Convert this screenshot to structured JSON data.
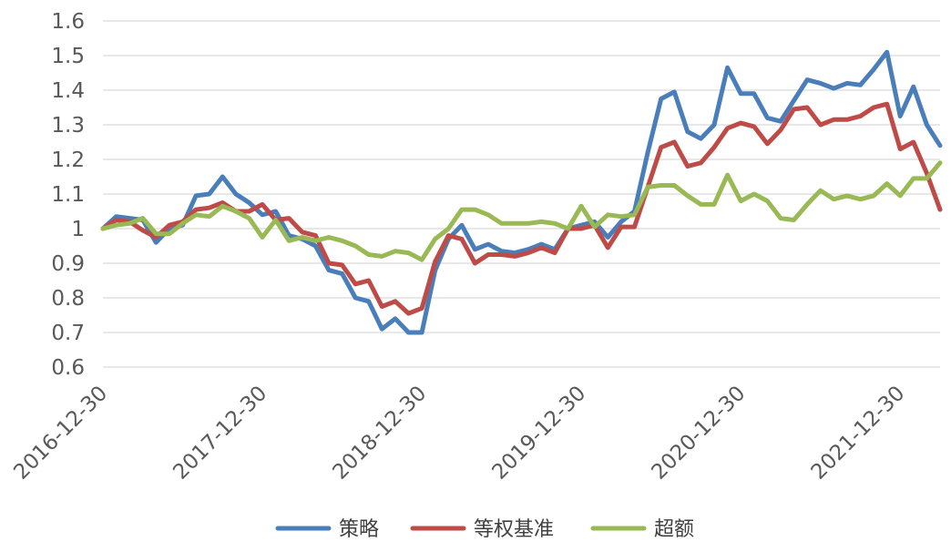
{
  "chart_data": {
    "type": "line",
    "title": "",
    "xlabel": "",
    "ylabel": "",
    "ylim": [
      0.6,
      1.6
    ],
    "y_ticks": [
      "0.6",
      "0.7",
      "0.8",
      "0.9",
      "1",
      "1.1",
      "1.2",
      "1.3",
      "1.4",
      "1.5",
      "1.6"
    ],
    "x_ticks": [
      "2016-12-30",
      "2017-12-30",
      "2018-12-30",
      "2019-12-30",
      "2020-12-30",
      "2021-12-30"
    ],
    "x_tick_index": [
      0,
      12,
      24,
      36,
      48,
      60
    ],
    "grid": "horizontal",
    "legend_position": "bottom",
    "series": [
      {
        "name": "策略",
        "color": "#4a7ebb",
        "values": [
          1.0,
          1.035,
          1.03,
          1.025,
          0.96,
          1.0,
          1.01,
          1.095,
          1.1,
          1.15,
          1.1,
          1.075,
          1.04,
          1.05,
          0.98,
          0.97,
          0.95,
          0.88,
          0.87,
          0.8,
          0.79,
          0.71,
          0.74,
          0.7,
          0.7,
          0.88,
          0.97,
          1.01,
          0.94,
          0.955,
          0.935,
          0.93,
          0.94,
          0.955,
          0.94,
          1.0,
          1.01,
          1.02,
          0.975,
          1.02,
          1.05,
          1.22,
          1.375,
          1.395,
          1.28,
          1.26,
          1.3,
          1.465,
          1.39,
          1.39,
          1.32,
          1.31,
          1.37,
          1.43,
          1.42,
          1.405,
          1.42,
          1.415,
          1.46,
          1.51,
          1.325,
          1.41,
          1.3,
          1.24
        ]
      },
      {
        "name": "等权基准",
        "color": "#be4b48",
        "values": [
          1.0,
          1.025,
          1.02,
          0.995,
          0.975,
          1.01,
          1.02,
          1.055,
          1.06,
          1.075,
          1.05,
          1.05,
          1.07,
          1.025,
          1.03,
          0.99,
          0.98,
          0.9,
          0.895,
          0.84,
          0.85,
          0.775,
          0.79,
          0.755,
          0.77,
          0.905,
          0.98,
          0.97,
          0.9,
          0.925,
          0.925,
          0.92,
          0.93,
          0.945,
          0.93,
          1.0,
          1.0,
          1.01,
          0.945,
          1.005,
          1.005,
          1.12,
          1.235,
          1.25,
          1.18,
          1.19,
          1.235,
          1.29,
          1.305,
          1.295,
          1.245,
          1.285,
          1.345,
          1.35,
          1.3,
          1.315,
          1.315,
          1.325,
          1.35,
          1.36,
          1.23,
          1.25,
          1.16,
          1.055
        ]
      },
      {
        "name": "超额",
        "color": "#98b954",
        "values": [
          1.0,
          1.01,
          1.015,
          1.03,
          0.985,
          0.985,
          1.015,
          1.04,
          1.035,
          1.065,
          1.05,
          1.03,
          0.975,
          1.025,
          0.965,
          0.975,
          0.965,
          0.975,
          0.965,
          0.95,
          0.925,
          0.92,
          0.935,
          0.93,
          0.91,
          0.97,
          1.0,
          1.055,
          1.055,
          1.04,
          1.015,
          1.015,
          1.015,
          1.02,
          1.015,
          1.0,
          1.065,
          1.005,
          1.04,
          1.035,
          1.04,
          1.12,
          1.125,
          1.125,
          1.095,
          1.07,
          1.07,
          1.155,
          1.08,
          1.1,
          1.08,
          1.03,
          1.025,
          1.07,
          1.11,
          1.085,
          1.095,
          1.085,
          1.095,
          1.13,
          1.095,
          1.145,
          1.145,
          1.19
        ]
      }
    ]
  }
}
